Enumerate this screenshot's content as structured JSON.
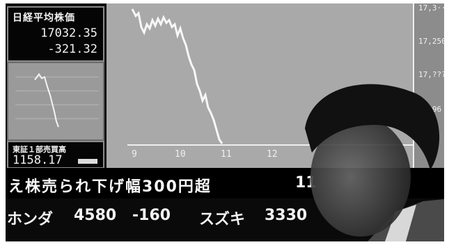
{
  "index_panel": {
    "label": "日経平均株価",
    "value": "17032.35",
    "change": "-321.32"
  },
  "topix_panel": {
    "label": "東証１部売買高",
    "value": "1158.17"
  },
  "main_chart": {
    "y_labels": [
      "17,3··",
      "17,250",
      "17,???",
      "···96"
    ],
    "x_labels": [
      "9",
      "10",
      "11",
      "12"
    ]
  },
  "ticker_headline": {
    "text": "え株売られ下げ幅300円超",
    "suffix": "11"
  },
  "ticker_stocks": [
    {
      "name": "ホンダ",
      "price": "4580",
      "change": "-160"
    },
    {
      "name": "スズキ",
      "price": "3330"
    }
  ]
}
